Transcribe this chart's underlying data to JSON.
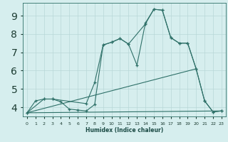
{
  "xlabel": "Humidex (Indice chaleur)",
  "bg_color": "#d6eeee",
  "line_color": "#2e7068",
  "grid_color": "#b8d8d8",
  "xlim": [
    -0.5,
    23.5
  ],
  "ylim": [
    3.5,
    9.7
  ],
  "xticks": [
    0,
    1,
    2,
    3,
    4,
    5,
    6,
    7,
    8,
    9,
    10,
    11,
    12,
    13,
    14,
    15,
    16,
    17,
    18,
    19,
    20,
    21,
    22,
    23
  ],
  "yticks": [
    4,
    5,
    6,
    7,
    8,
    9
  ],
  "line1_x": [
    0,
    1,
    2,
    3,
    4,
    5,
    6,
    7,
    8,
    9,
    10,
    11,
    12,
    13,
    14,
    15,
    16,
    17,
    18,
    19,
    20,
    21,
    22,
    23
  ],
  "line1_y": [
    3.7,
    4.35,
    4.45,
    4.45,
    4.3,
    3.9,
    3.85,
    3.8,
    4.15,
    7.4,
    7.55,
    7.75,
    7.45,
    6.3,
    8.6,
    9.35,
    9.3,
    7.8,
    7.5,
    7.5,
    6.1,
    4.35,
    3.75,
    3.8
  ],
  "line2_x": [
    0,
    2,
    3,
    7,
    8,
    9,
    10,
    11,
    12,
    14,
    15,
    16,
    17,
    18,
    19,
    20,
    21,
    22,
    23
  ],
  "line2_y": [
    3.7,
    4.45,
    4.45,
    4.2,
    5.35,
    7.4,
    7.55,
    7.75,
    7.45,
    8.55,
    9.35,
    9.3,
    7.8,
    7.5,
    7.5,
    6.1,
    4.35,
    3.75,
    3.8
  ],
  "line3_x": [
    0,
    23
  ],
  "line3_y": [
    3.7,
    3.8
  ],
  "line4_x": [
    0,
    20
  ],
  "line4_y": [
    3.7,
    6.1
  ]
}
